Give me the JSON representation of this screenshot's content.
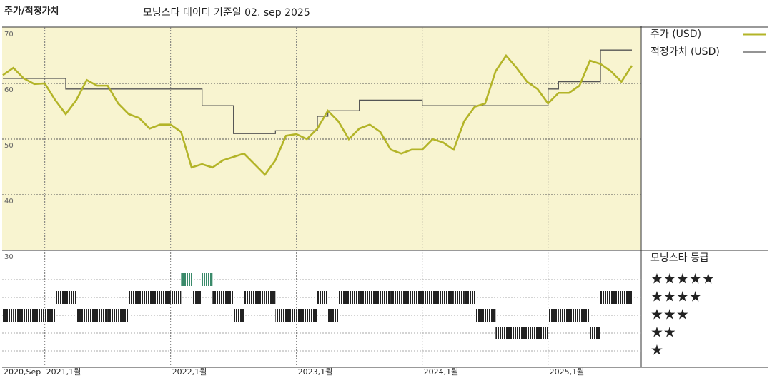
{
  "chart_data": {
    "type": "line",
    "title": "주가/적정가치",
    "subtitle": "모닝스타 데이터 기준일 02. sep 2025",
    "x": [
      "2020-09",
      "2020-10",
      "2020-11",
      "2020-12",
      "2021-01",
      "2021-02",
      "2021-03",
      "2021-04",
      "2021-05",
      "2021-06",
      "2021-07",
      "2021-08",
      "2021-09",
      "2021-10",
      "2021-11",
      "2021-12",
      "2022-01",
      "2022-02",
      "2022-03",
      "2022-04",
      "2022-05",
      "2022-06",
      "2022-07",
      "2022-08",
      "2022-09",
      "2022-10",
      "2022-11",
      "2022-12",
      "2023-01",
      "2023-02",
      "2023-03",
      "2023-04",
      "2023-05",
      "2023-06",
      "2023-07",
      "2023-08",
      "2023-09",
      "2023-10",
      "2023-11",
      "2023-12",
      "2024-01",
      "2024-02",
      "2024-03",
      "2024-04",
      "2024-05",
      "2024-06",
      "2024-07",
      "2024-08",
      "2024-09",
      "2024-10",
      "2024-11",
      "2024-12",
      "2025-01",
      "2025-02",
      "2025-03",
      "2025-04",
      "2025-05",
      "2025-06",
      "2025-07",
      "2025-08",
      "2025-09"
    ],
    "series": [
      {
        "name": "주가 (USD)",
        "color": "#b3b428",
        "values": [
          61.5,
          62.8,
          60.9,
          59.9,
          60.0,
          57.0,
          54.5,
          57.0,
          60.6,
          59.6,
          59.6,
          56.4,
          54.5,
          53.8,
          51.9,
          52.6,
          52.6,
          51.3,
          44.9,
          45.5,
          44.9,
          46.2,
          46.8,
          47.4,
          45.5,
          43.6,
          46.2,
          50.6,
          50.9,
          50.0,
          51.9,
          55.1,
          53.2,
          50.0,
          51.9,
          52.6,
          51.3,
          48.1,
          47.4,
          48.1,
          48.1,
          50.0,
          49.4,
          48.1,
          53.2,
          55.8,
          56.4,
          62.2,
          65.0,
          62.8,
          60.3,
          59.0,
          56.4,
          58.3,
          58.3,
          59.6,
          64.1,
          63.5,
          62.2,
          60.3,
          63.2
        ]
      },
      {
        "name": "적정가치 (USD)",
        "color": "#555555",
        "step": true,
        "values": [
          60.9,
          60.9,
          60.9,
          60.9,
          60.9,
          60.9,
          59.0,
          59.0,
          59.0,
          59.0,
          59.0,
          59.0,
          59.0,
          59.0,
          59.0,
          59.0,
          59.0,
          59.0,
          59.0,
          56.0,
          56.0,
          56.0,
          51.0,
          51.0,
          51.0,
          51.0,
          51.5,
          51.5,
          51.5,
          51.5,
          54.1,
          55.1,
          55.1,
          55.1,
          57.0,
          57.0,
          57.0,
          57.0,
          57.0,
          57.0,
          56.0,
          56.0,
          56.0,
          56.0,
          56.0,
          56.0,
          56.0,
          56.0,
          56.0,
          56.0,
          56.0,
          56.0,
          59.0,
          60.3,
          60.3,
          60.3,
          60.3,
          66.0,
          66.0,
          66.0,
          66.0
        ]
      }
    ],
    "ylim": [
      30,
      70
    ],
    "yticks": [
      70,
      60,
      50,
      40,
      30
    ],
    "xticks": [
      {
        "value": "2020-09",
        "label": "2020,Sep"
      },
      {
        "value": "2021-01",
        "label": "2021,1월"
      },
      {
        "value": "2022-01",
        "label": "2022,1월"
      },
      {
        "value": "2023-01",
        "label": "2023,1월"
      },
      {
        "value": "2024-01",
        "label": "2024,1월"
      },
      {
        "value": "2025-01",
        "label": "2025,1월"
      }
    ],
    "grid": true,
    "rating": {
      "title": "모닝스타 등급",
      "levels": [
        "★",
        "★★",
        "★★★",
        "★★★★",
        "★★★★★"
      ],
      "colors": [
        "#222222",
        "#222222",
        "#222222",
        "#222222",
        "#3a8a6a"
      ],
      "values": [
        3,
        3,
        3,
        3,
        3,
        4,
        4,
        3,
        3,
        3,
        3,
        3,
        4,
        4,
        4,
        4,
        4,
        5,
        4,
        5,
        4,
        4,
        3,
        4,
        4,
        4,
        3,
        3,
        3,
        3,
        4,
        3,
        4,
        4,
        4,
        4,
        4,
        4,
        4,
        4,
        4,
        4,
        4,
        4,
        4,
        3,
        3,
        2,
        2,
        2,
        2,
        2,
        3,
        3,
        3,
        3,
        2,
        4,
        4,
        4,
        4
      ]
    }
  }
}
